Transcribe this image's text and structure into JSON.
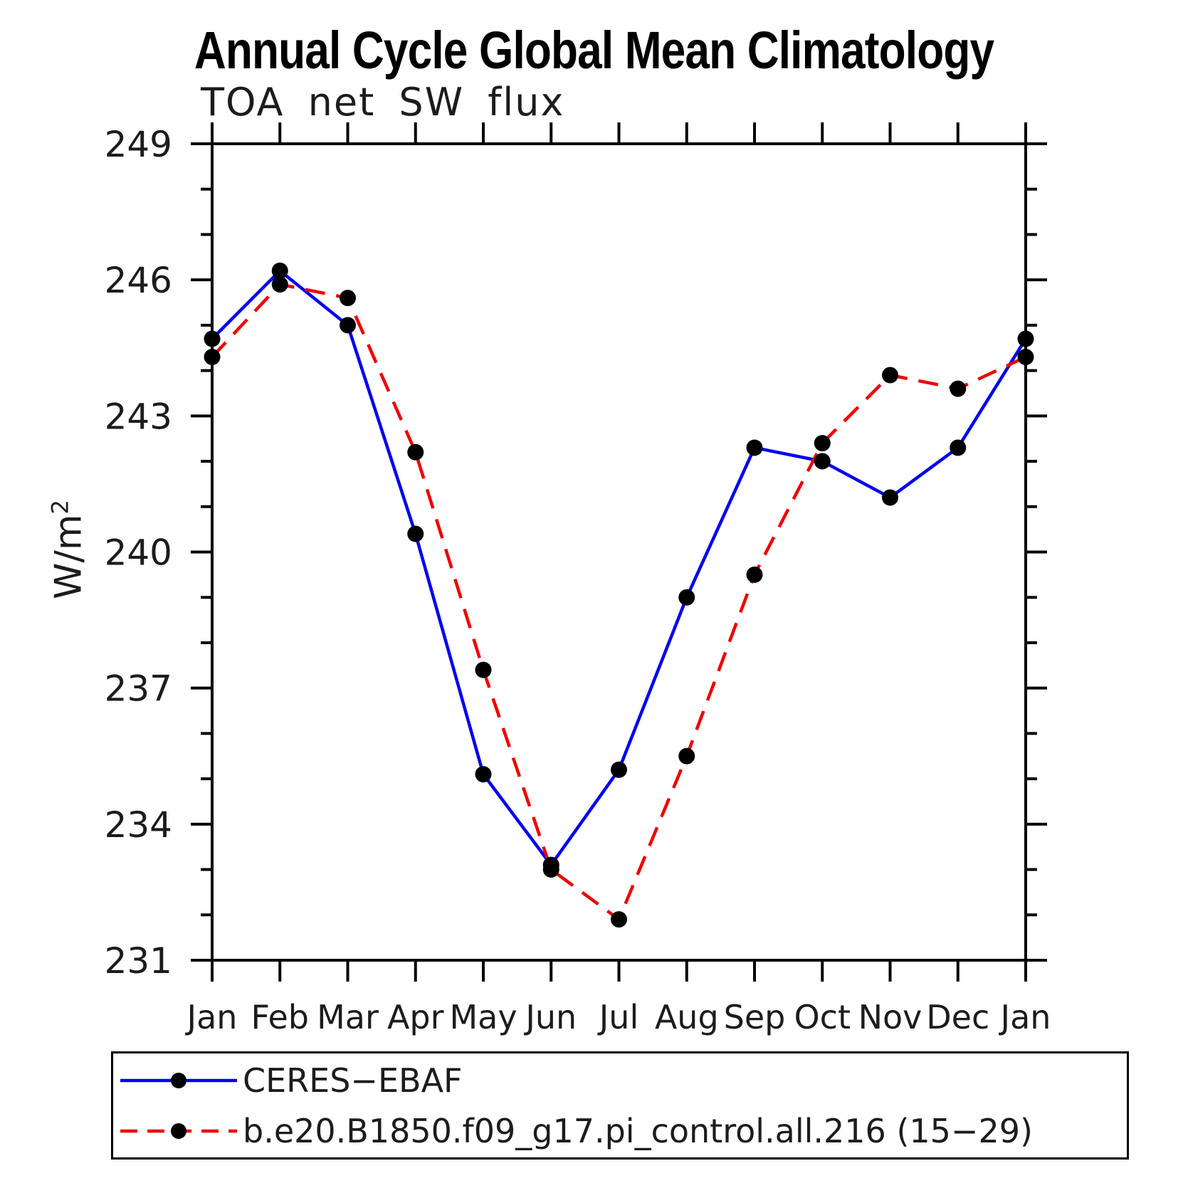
{
  "chart_data": {
    "type": "line",
    "title": "Annual Cycle Global Mean Climatology",
    "subtitle": "TOA net SW flux",
    "ylabel": "W/m",
    "ylabel_sup": "2",
    "categories": [
      "Jan",
      "Feb",
      "Mar",
      "Apr",
      "May",
      "Jun",
      "Jul",
      "Aug",
      "Sep",
      "Oct",
      "Nov",
      "Dec",
      "Jan"
    ],
    "ylim": [
      231,
      249
    ],
    "yticks": [
      231,
      234,
      237,
      240,
      243,
      246,
      249
    ],
    "minor_tick_step": 1,
    "grid": false,
    "legend_position": "bottom-left",
    "marker_color": "#000000",
    "series": [
      {
        "name": "CERES−EBAF",
        "color": "#0000ee",
        "style": "solid",
        "values": [
          244.7,
          246.2,
          245.0,
          240.4,
          235.1,
          233.1,
          235.2,
          239.0,
          242.3,
          242.0,
          241.2,
          242.3,
          244.7
        ]
      },
      {
        "name": "b.e20.B1850.f09_g17.pi_control.all.216 (15−29)",
        "color": "#ee0000",
        "style": "dashed",
        "values": [
          244.3,
          245.9,
          245.6,
          242.2,
          237.4,
          233.0,
          231.9,
          235.5,
          239.5,
          242.4,
          243.9,
          243.6,
          244.3
        ]
      }
    ]
  }
}
